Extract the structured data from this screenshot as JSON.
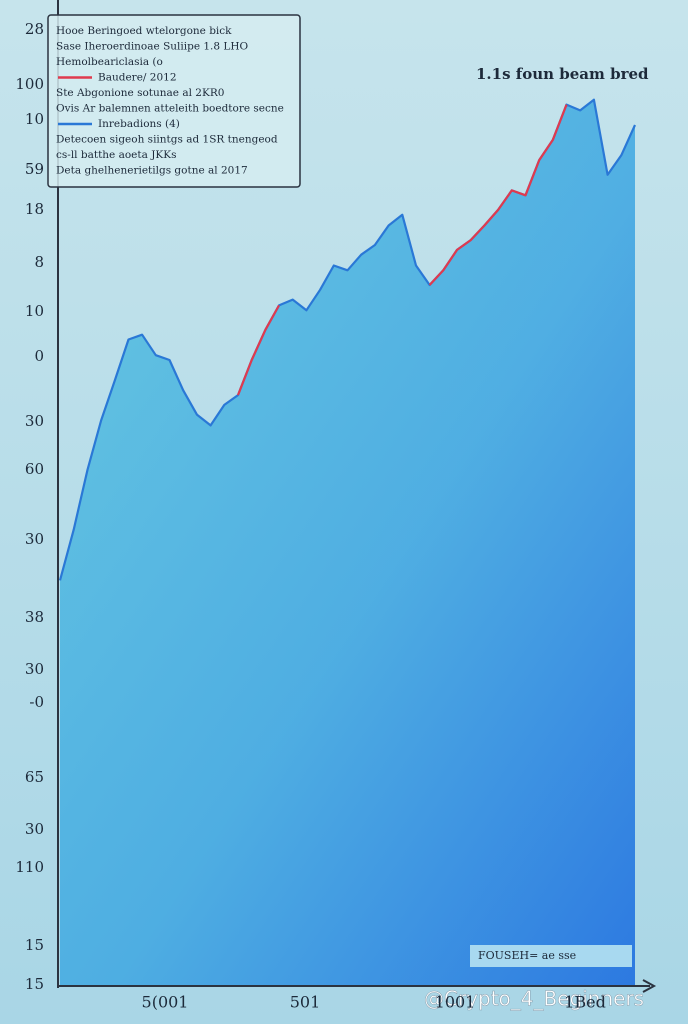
{
  "chart_data": {
    "type": "area",
    "title": "1.1s foun beam bred",
    "legend_lines": [
      "Hooe Beringoed wtelorgone bick",
      "Sase Iheroerdinoae Suliipe 1.8 LHO",
      "Hemolbeariclasia (o",
      "Ste Abgonione sotunae al 2KR0",
      "Ovis Ar balemnen atteleith boedtore secne",
      "Detecoen sigeoh siintgs ad 1SR tnengeod",
      "cs-ll batthe aoeta JKKs",
      "Deta ghelhenerietilgs gotne al 2017"
    ],
    "y_axis_labels": [
      "28",
      "100",
      "10",
      "59",
      "18",
      "8",
      "10",
      "0",
      "30",
      "60",
      "30",
      "38",
      "30",
      "-0",
      "65",
      "30",
      "110",
      "15",
      "15"
    ],
    "x_axis_labels": [
      "5(001",
      "501",
      "1001",
      "1Bed"
    ],
    "inset_label": "FOUSEH= ae sse",
    "watermark": "@Crypto_4_Beginners",
    "ylim": [
      0,
      100
    ],
    "series": [
      {
        "name": "Inrebadions (4)",
        "color": "#2a78d6",
        "values": [
          41.5,
          46.7,
          52.8,
          57.9,
          62,
          66.2,
          66.7,
          64.6,
          64.1,
          61,
          58.5,
          57.4,
          59.5,
          60.5,
          64.1,
          67.2,
          69.7,
          70.3,
          69.2,
          71.3,
          73.8,
          73.3,
          74.9,
          75.9,
          77.9,
          79,
          73.8,
          71.8,
          73.3,
          75.4,
          76.4,
          77.9,
          79.5,
          81.5,
          81,
          84.6,
          86.7,
          90.3,
          89.7,
          90.8,
          83.1,
          85.1,
          88.2
        ]
      },
      {
        "name": "Baudere/ 2012",
        "color": "#e03a4e",
        "values": [
          null,
          null,
          null,
          null,
          null,
          null,
          null,
          null,
          null,
          null,
          null,
          null,
          null,
          60.5,
          64.1,
          67.2,
          69.7,
          null,
          null,
          null,
          null,
          null,
          null,
          null,
          null,
          null,
          null,
          71.8,
          73.3,
          75.4,
          76.4,
          77.9,
          79.5,
          81.5,
          81,
          84.6,
          86.7,
          90.3,
          null,
          null,
          null,
          null,
          null
        ]
      }
    ]
  }
}
